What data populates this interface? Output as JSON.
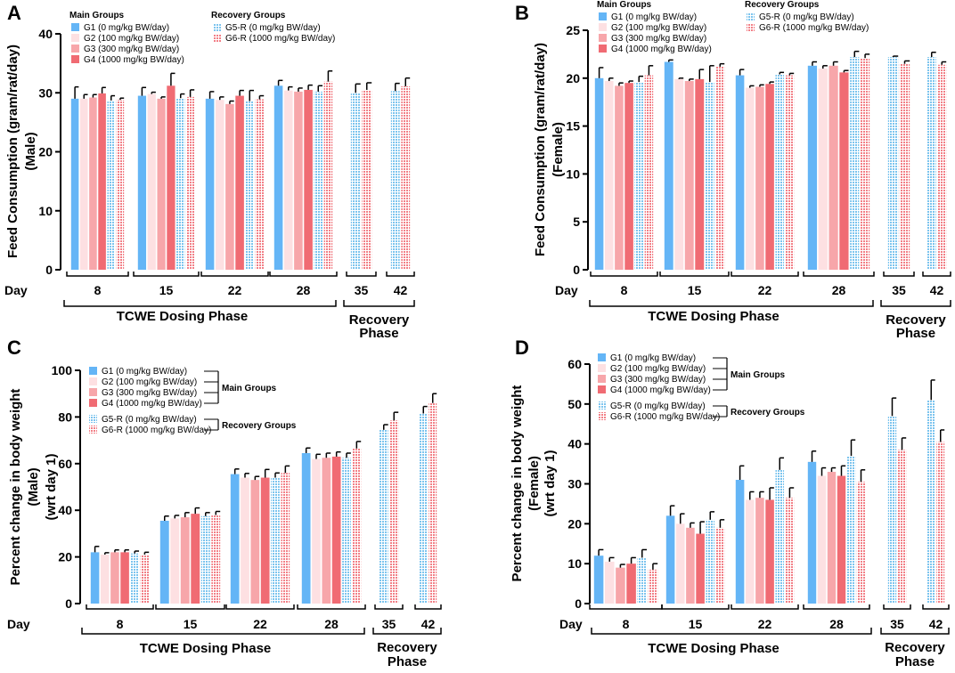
{
  "colors": {
    "G1": "#64b5f6",
    "G2": "#fde0e2",
    "G3": "#f7a6aa",
    "G4": "#f06b73",
    "G5R": "#7cc4ee",
    "G6R": "#f27f86",
    "axis": "#000000"
  },
  "day_label": "Day",
  "dosing_phase_label": "TCWE Dosing Phase",
  "dosing_phase_label_alt": "TCWE Dosing  Phase",
  "recovery_phase_label": [
    "Recovery",
    "Phase"
  ],
  "chart_data": [
    {
      "panel": "A",
      "type": "bar",
      "ylabel": [
        "Feed Consumption (gram/rat/day)",
        "(Male)"
      ],
      "ylim": [
        0,
        40
      ],
      "yticks": [
        0,
        10,
        20,
        30,
        40
      ],
      "legend_style": "grouped",
      "legend_titles": [
        "Main Groups",
        "Recovery Groups"
      ],
      "main_series": [
        {
          "key": "G1",
          "name": "G1 (0 mg/kg BW/day)",
          "values": [
            29,
            29.5,
            29,
            31.2
          ],
          "errors": [
            2,
            1.4,
            1.2,
            0.9
          ]
        },
        {
          "key": "G2",
          "name": "G2 (100 mg/kg BW/day)",
          "values": [
            29,
            29.8,
            28.8,
            30.4
          ],
          "errors": [
            0.7,
            0.3,
            0.5,
            0.6
          ]
        },
        {
          "key": "G3",
          "name": "G3 (300 mg/kg BW/day)",
          "values": [
            29.2,
            29,
            28.1,
            30.2
          ],
          "errors": [
            0.5,
            0.3,
            0.5,
            0.6
          ]
        },
        {
          "key": "G4",
          "name": "G4 (1000 mg/kg BW/day)",
          "values": [
            29.9,
            31.2,
            29.5,
            30.5
          ],
          "errors": [
            1,
            2.1,
            0.9,
            0.8
          ]
        }
      ],
      "recovery_series": [
        {
          "key": "G5R",
          "name": "G5-R (0 mg/kg BW/day)",
          "values": [
            28.7,
            29.1,
            28.6,
            30.2,
            30,
            30.3
          ],
          "errors": [
            0.8,
            0.7,
            1.8,
            1,
            1.5,
            1.3
          ]
        },
        {
          "key": "G6R",
          "name": "G6-R (1000 mg/kg BW/day)",
          "values": [
            28.8,
            29.3,
            28.9,
            31.9,
            30.5,
            31.1
          ],
          "errors": [
            0.3,
            1.2,
            0.6,
            1.8,
            1.2,
            1.4
          ]
        }
      ],
      "dosing_days": [
        "8",
        "15",
        "22",
        "28"
      ],
      "recovery_days": [
        "35",
        "42"
      ]
    },
    {
      "panel": "B",
      "type": "bar",
      "ylabel": [
        "Feed Consumption (gram/rat/day)",
        "(Female)"
      ],
      "ylim": [
        0,
        25
      ],
      "yticks": [
        0,
        5,
        10,
        15,
        20,
        25
      ],
      "legend_style": "grouped",
      "legend_titles": [
        "Main Groups",
        "Recovery Groups"
      ],
      "main_series": [
        {
          "key": "G1",
          "name": "G1 (0 mg/kg BW/day)",
          "values": [
            20,
            21.7,
            20.3,
            21.3
          ],
          "errors": [
            1.1,
            0.2,
            0.6,
            0.4
          ]
        },
        {
          "key": "G2",
          "name": "G2 (100 mg/kg BW/day)",
          "values": [
            19.7,
            19.9,
            19,
            21
          ],
          "errors": [
            0.3,
            0.1,
            0.2,
            0.3
          ]
        },
        {
          "key": "G3",
          "name": "G3 (300 mg/kg BW/day)",
          "values": [
            19.2,
            19.7,
            19.1,
            21.3
          ],
          "errors": [
            0.3,
            0.2,
            0.2,
            0.4
          ]
        },
        {
          "key": "G4",
          "name": "G4 (1000 mg/kg BW/day)",
          "values": [
            19.5,
            19.9,
            19.4,
            20.6
          ],
          "errors": [
            0.2,
            1,
            0.2,
            0.2
          ]
        }
      ],
      "recovery_series": [
        {
          "key": "G5R",
          "name": "G5-R (0 mg/kg BW/day)",
          "values": [
            19.6,
            19.6,
            20.4,
            22.2,
            22.2,
            22.2
          ],
          "errors": [
            0.6,
            1.7,
            0.2,
            0.6,
            0.1,
            0.5
          ]
        },
        {
          "key": "G6R",
          "name": "G6-R (1000 mg/kg BW/day)",
          "values": [
            20.3,
            21.2,
            20.3,
            22.1,
            21.5,
            21.4
          ],
          "errors": [
            1,
            0.3,
            0.2,
            0.4,
            0.3,
            0.3
          ]
        }
      ],
      "dosing_days": [
        "8",
        "15",
        "22",
        "28"
      ],
      "recovery_days": [
        "35",
        "42"
      ]
    },
    {
      "panel": "C",
      "type": "bar",
      "ylabel": [
        "Percent change in body weight",
        "(Male)",
        "(wrt day 1)"
      ],
      "ylim": [
        0,
        100
      ],
      "yticks": [
        0,
        20,
        40,
        60,
        80,
        100
      ],
      "legend_style": "bracketed",
      "legend_titles": [
        "Main Groups",
        "Recovery Groups"
      ],
      "main_series": [
        {
          "key": "G1",
          "name": "G1 (0 mg/kg BW/day)",
          "values": [
            22,
            35.5,
            55.5,
            64.5
          ],
          "errors": [
            2.5,
            2,
            2.2,
            2.2
          ]
        },
        {
          "key": "G2",
          "name": "G2 (100 mg/kg BW/day)",
          "values": [
            21,
            36.5,
            54,
            62
          ],
          "errors": [
            0.8,
            1.3,
            1.8,
            2
          ]
        },
        {
          "key": "G3",
          "name": "G3 (300 mg/kg BW/day)",
          "values": [
            22,
            37,
            53,
            62.5
          ],
          "errors": [
            1,
            2,
            1.5,
            2
          ]
        },
        {
          "key": "G4",
          "name": "G4 (1000 mg/kg BW/day)",
          "values": [
            22,
            38.5,
            54,
            63
          ],
          "errors": [
            1,
            2.5,
            3.5,
            2
          ]
        },
        {
          "key": "G5R",
          "name": "G5-R (0 mg/kg BW/day)",
          "values": [
            21.5,
            37.5,
            54,
            62.5,
            74.5,
            81.5
          ],
          "errors": [
            1,
            1.5,
            2,
            2,
            2.2,
            3
          ]
        },
        {
          "key": "G6R",
          "name": "G6-R (1000 mg/kg BW/day)",
          "values": [
            21,
            38,
            56,
            66.5,
            78.5,
            86
          ],
          "errors": [
            1,
            1.5,
            3,
            3,
            3.5,
            4
          ]
        }
      ],
      "dosing_days": [
        "8",
        "15",
        "22",
        "28"
      ],
      "recovery_days": [
        "35",
        "42"
      ]
    },
    {
      "panel": "D",
      "type": "bar",
      "ylabel": [
        "Percent change in body weight",
        "(Female)",
        "(wrt day 1)"
      ],
      "ylim": [
        0,
        60
      ],
      "yticks": [
        0,
        10,
        20,
        30,
        40,
        50,
        60
      ],
      "legend_style": "bracketed",
      "legend_titles": [
        "Main Groups",
        "Recovery Groups"
      ],
      "main_series": [
        {
          "key": "G1",
          "name": "G1 (0 mg/kg BW/day)",
          "values": [
            12,
            22,
            31,
            35.5
          ],
          "errors": [
            1.5,
            2.5,
            3.5,
            2.7
          ]
        },
        {
          "key": "G2",
          "name": "G2 (100 mg/kg BW/day)",
          "values": [
            10.5,
            20,
            26,
            32
          ],
          "errors": [
            1,
            2.5,
            2,
            2
          ]
        },
        {
          "key": "G3",
          "name": "G3 (300 mg/kg BW/day)",
          "values": [
            9,
            19,
            26.5,
            33
          ],
          "errors": [
            0.8,
            1.2,
            1.5,
            1
          ]
        },
        {
          "key": "G4",
          "name": "G4 (1000 mg/kg BW/day)",
          "values": [
            10,
            17.5,
            26,
            32
          ],
          "errors": [
            1.5,
            3,
            3,
            2.5
          ]
        },
        {
          "key": "G5R",
          "name": "G5-R (0 mg/kg BW/day)",
          "values": [
            11.5,
            21,
            33.5,
            37,
            47,
            51
          ],
          "errors": [
            2,
            2,
            3,
            4,
            4.5,
            5
          ]
        },
        {
          "key": "G6R",
          "name": "G6-R (1000 mg/kg BW/day)",
          "values": [
            8.5,
            19,
            26.5,
            30.5,
            38.5,
            40.5
          ],
          "errors": [
            1.5,
            2,
            2.5,
            3,
            3,
            3
          ]
        }
      ],
      "dosing_days": [
        "8",
        "15",
        "22",
        "28"
      ],
      "recovery_days": [
        "35",
        "42"
      ]
    }
  ]
}
